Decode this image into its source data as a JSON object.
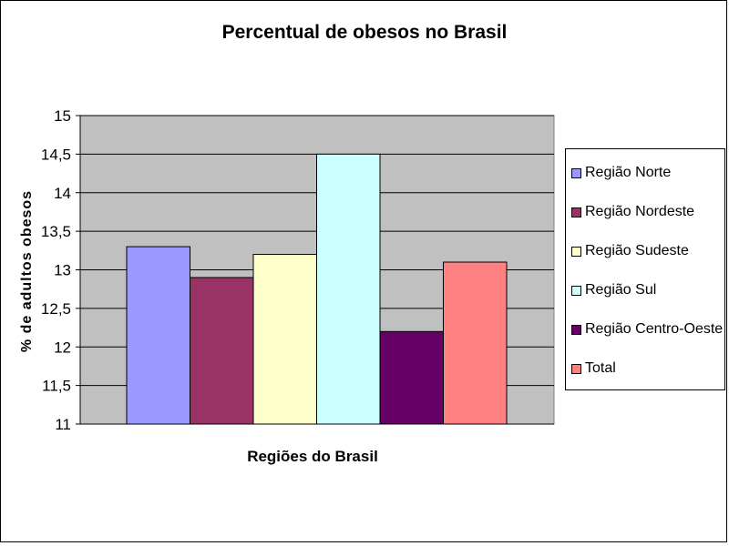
{
  "chart_data": {
    "type": "bar",
    "title": "Percentual de obesos no Brasil",
    "xlabel": "Regiões do Brasil",
    "ylabel": "% de adultos obesos",
    "ylim": [
      11,
      15
    ],
    "ytick_step": 0.5,
    "ytick_labels": [
      "11",
      "11,5",
      "12",
      "12,5",
      "13",
      "13,5",
      "14",
      "14,5",
      "15"
    ],
    "grid": true,
    "legend_position": "right",
    "plot_background": "#c0c0c0",
    "series": [
      {
        "name": "Região Norte",
        "value": 13.3,
        "color": "#9999ff"
      },
      {
        "name": "Região Nordeste",
        "value": 12.9,
        "color": "#993366"
      },
      {
        "name": "Região Sudeste",
        "value": 13.2,
        "color": "#ffffcc"
      },
      {
        "name": "Região Sul",
        "value": 14.5,
        "color": "#ccffff"
      },
      {
        "name": "Região Centro-Oeste",
        "value": 12.2,
        "color": "#660066"
      },
      {
        "name": "Total",
        "value": 13.1,
        "color": "#ff8080"
      }
    ]
  }
}
